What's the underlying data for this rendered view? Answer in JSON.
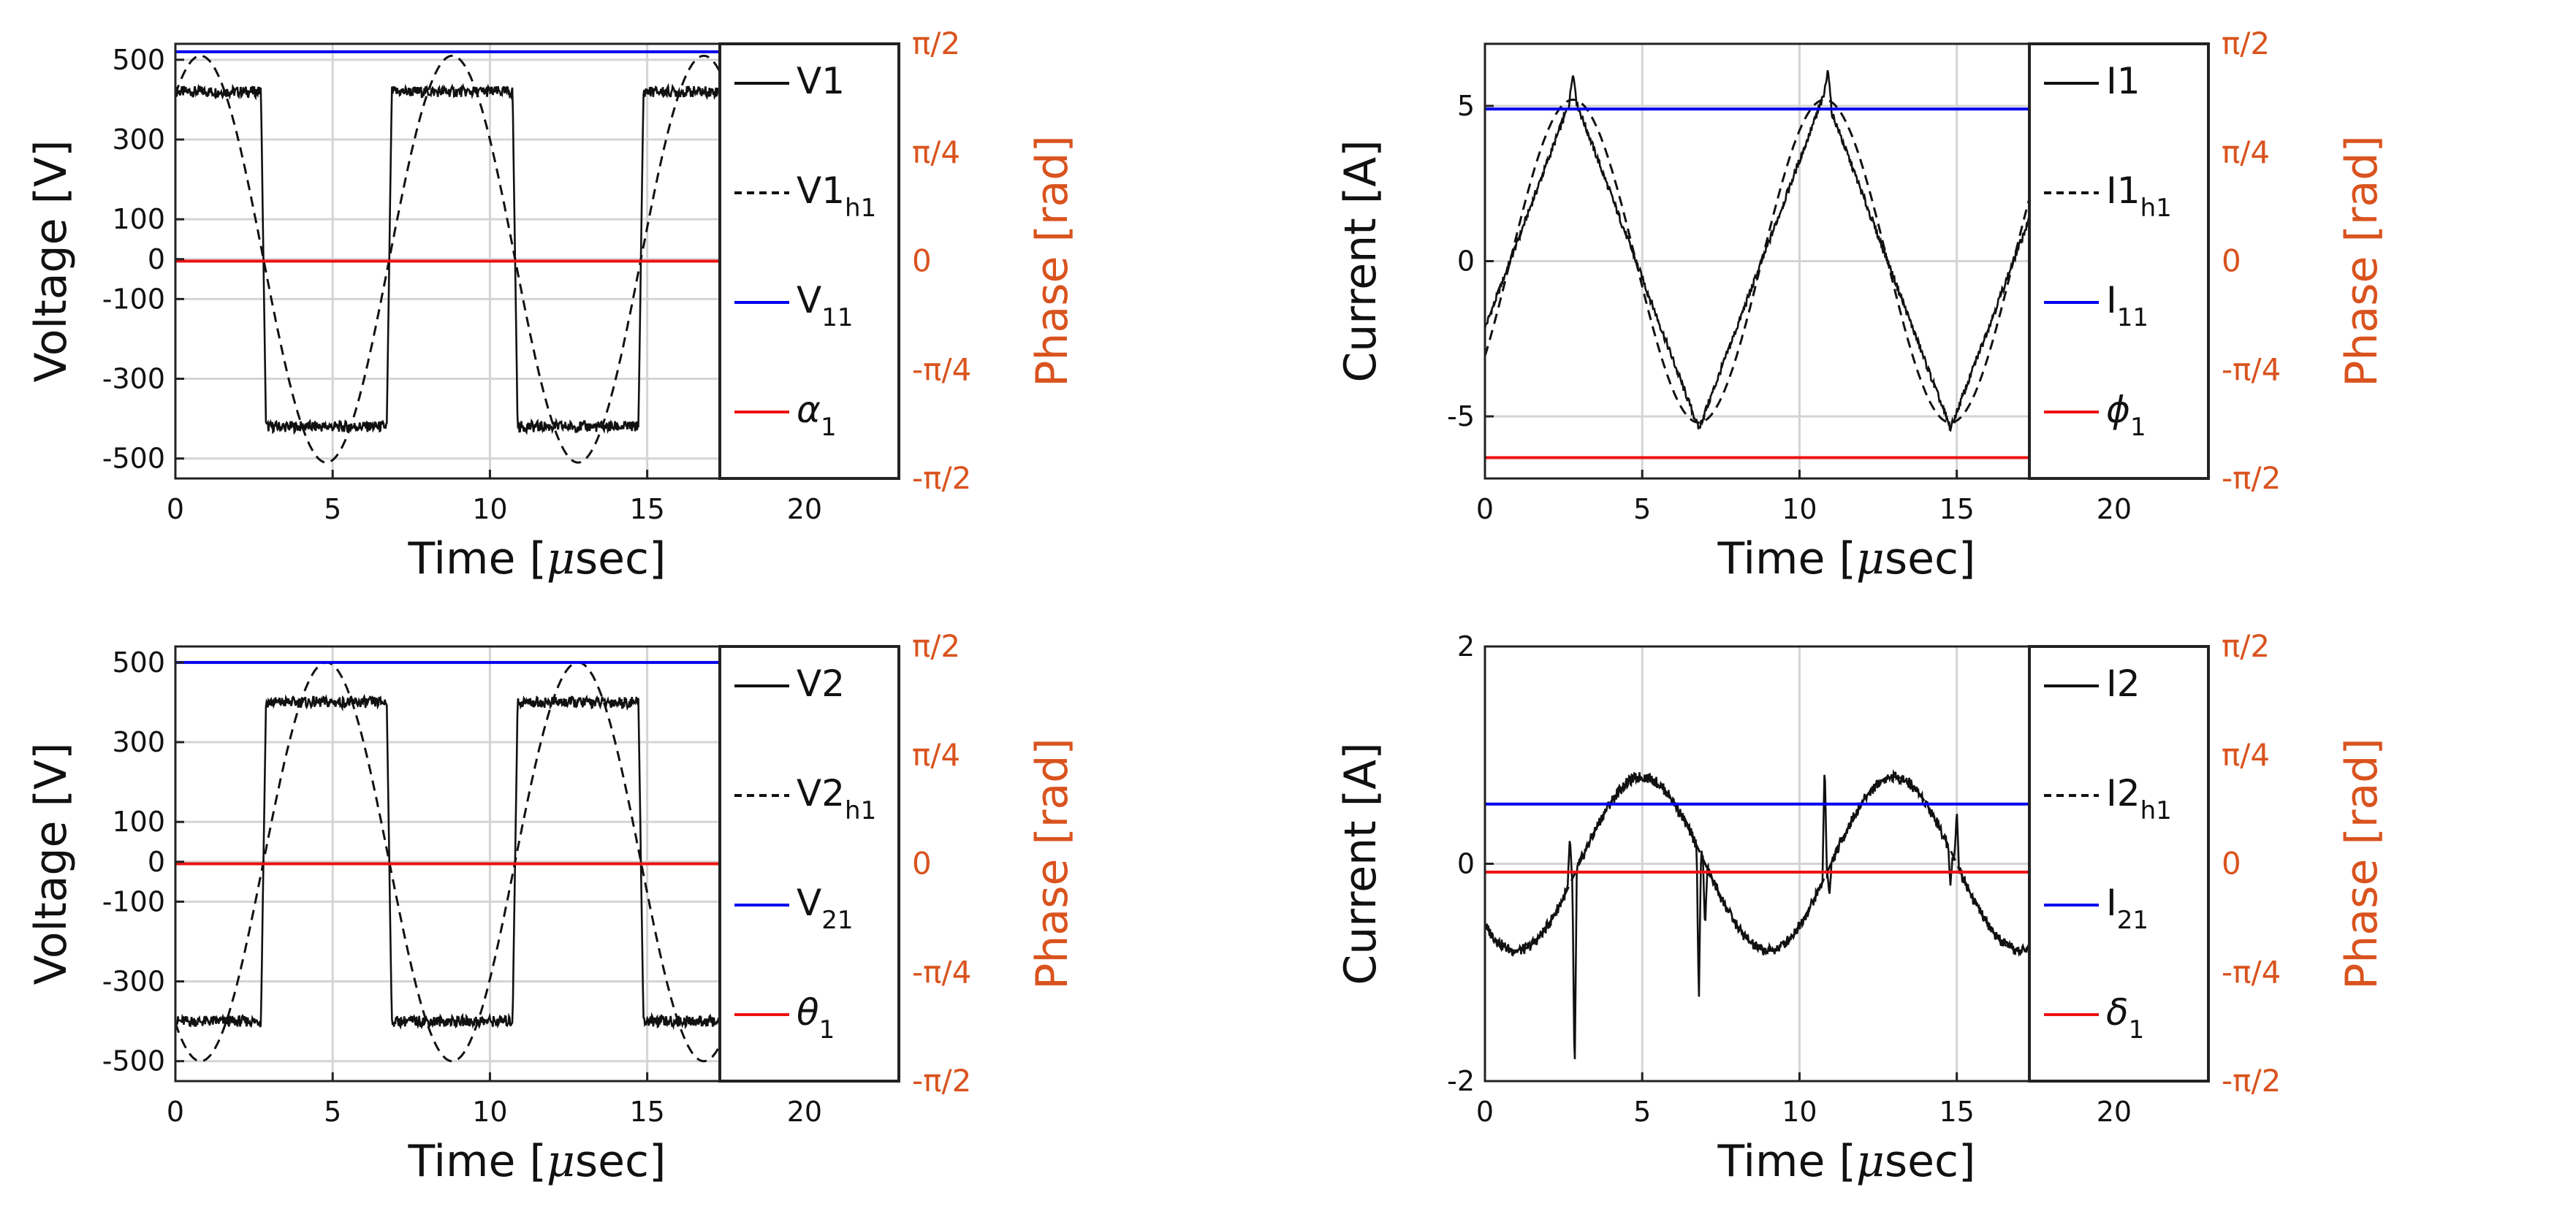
{
  "colors": {
    "blue": "#0000EE",
    "red": "#EE1111",
    "orange": "#D9531E",
    "grid": "#D4D4D4",
    "black": "#111111"
  },
  "chart_data": [
    {
      "id": "p1",
      "type": "line",
      "xlabel": "Time [",
      "xunit": "μ",
      "xunit_tail": "sec]",
      "ylabel": "Voltage [V]",
      "y2label": "Phase [rad]",
      "xlim": [
        0,
        23
      ],
      "ylim": [
        -550,
        540
      ],
      "y2lim": [
        -1.5708,
        1.5708
      ],
      "xticks": [
        0,
        5,
        10,
        15,
        20
      ],
      "xtick_labels": [
        "0",
        "5",
        "10",
        "15",
        "20"
      ],
      "yticks": [
        -500,
        -300,
        -100,
        0,
        100,
        300,
        500
      ],
      "ytick_labels": [
        "-500",
        "-300",
        "-100",
        "0",
        "100",
        "300",
        "500"
      ],
      "y2tick_labels": [
        "π/2",
        "π/4",
        "0",
        "-π/4",
        "-π/2"
      ],
      "period": 8,
      "data_end": 18.5,
      "square": {
        "amplitude": 420,
        "rise_at": 6.8,
        "fall_at": 2.8
      },
      "sine": {
        "amplitude": 510,
        "peak_at": 0.8,
        "sign": 1
      },
      "amplitude_line": 520,
      "phase_line_rad": 0,
      "legend": [
        {
          "name": "V",
          "main": "1",
          "sub": "",
          "style": "solid"
        },
        {
          "name": "V",
          "main": "1",
          "sub": "h1",
          "style": "dashed"
        },
        {
          "name": "V",
          "main": "",
          "sub": "11",
          "style": "blue"
        },
        {
          "name": "α",
          "main": "",
          "sub": "1",
          "style": "red"
        }
      ]
    },
    {
      "id": "p2",
      "type": "line",
      "xlabel": "Time [",
      "xunit": "μ",
      "xunit_tail": "sec]",
      "ylabel": "Current [A]",
      "y2label": "Phase [rad]",
      "xlim": [
        0,
        23
      ],
      "ylim": [
        -7,
        7
      ],
      "y2lim": [
        -1.5708,
        1.5708
      ],
      "xticks": [
        0,
        5,
        10,
        15,
        20
      ],
      "xtick_labels": [
        "0",
        "5",
        "10",
        "15",
        "20"
      ],
      "yticks": [
        -5,
        0,
        5
      ],
      "ytick_labels": [
        "-5",
        "0",
        "5"
      ],
      "y2tick_labels": [
        "π/2",
        "π/4",
        "0",
        "-π/4",
        "-π/2"
      ],
      "period": 8,
      "data_end": 18.5,
      "triangle": {
        "amplitude": 5.4,
        "peak_at": 2.8
      },
      "sine": {
        "amplitude": 5.2,
        "peak_at": 2.8,
        "sign": 1
      },
      "spikes": [
        {
          "x": 2.8,
          "y": 6.0
        },
        {
          "x": 10.9,
          "y": 6.2
        }
      ],
      "amplitude_line": 4.9,
      "phase_line_rad": -1.42,
      "legend": [
        {
          "name": "I",
          "main": "1",
          "sub": "",
          "style": "solid"
        },
        {
          "name": "I",
          "main": "1",
          "sub": "h1",
          "style": "dashed"
        },
        {
          "name": "I",
          "main": "",
          "sub": "11",
          "style": "blue"
        },
        {
          "name": "ϕ",
          "main": "",
          "sub": "1",
          "style": "red"
        }
      ]
    },
    {
      "id": "p3",
      "type": "line",
      "xlabel": "Time [",
      "xunit": "μ",
      "xunit_tail": "sec]",
      "ylabel": "Voltage [V]",
      "y2label": "Phase [rad]",
      "xlim": [
        0,
        23
      ],
      "ylim": [
        -550,
        540
      ],
      "y2lim": [
        -1.5708,
        1.5708
      ],
      "xticks": [
        0,
        5,
        10,
        15,
        20
      ],
      "xtick_labels": [
        "0",
        "5",
        "10",
        "15",
        "20"
      ],
      "yticks": [
        -500,
        -300,
        -100,
        0,
        100,
        300,
        500
      ],
      "ytick_labels": [
        "-500",
        "-300",
        "-100",
        "0",
        "100",
        "300",
        "500"
      ],
      "y2tick_labels": [
        "π/2",
        "π/4",
        "0",
        "-π/4",
        "-π/2"
      ],
      "period": 8,
      "data_end": 18.5,
      "square": {
        "amplitude": 400,
        "rise_at": 2.8,
        "fall_at": 6.8
      },
      "sine": {
        "amplitude": 500,
        "peak_at": 4.8,
        "sign": 1
      },
      "amplitude_line": 500,
      "phase_line_rad": 0,
      "legend": [
        {
          "name": "V",
          "main": "2",
          "sub": "",
          "style": "solid"
        },
        {
          "name": "V",
          "main": "2",
          "sub": "h1",
          "style": "dashed"
        },
        {
          "name": "V",
          "main": "",
          "sub": "21",
          "style": "blue"
        },
        {
          "name": "θ",
          "main": "",
          "sub": "1",
          "style": "red"
        }
      ]
    },
    {
      "id": "p4",
      "type": "line",
      "xlabel": "Time [",
      "xunit": "μ",
      "xunit_tail": "sec]",
      "ylabel": "Current [A]",
      "y2label": "Phase [rad]",
      "xlim": [
        0,
        23
      ],
      "ylim": [
        -2,
        2
      ],
      "y2lim": [
        -1.5708,
        1.5708
      ],
      "xticks": [
        0,
        5,
        10,
        15,
        20
      ],
      "xtick_labels": [
        "0",
        "5",
        "10",
        "15",
        "20"
      ],
      "yticks": [
        -2,
        0,
        2
      ],
      "ytick_labels": [
        "-2",
        "0",
        "2"
      ],
      "y2tick_labels": [
        "π/2",
        "π/4",
        "0",
        "-π/4",
        "-π/2"
      ],
      "period": 8,
      "data_end": 18.5,
      "sine": {
        "amplitude": 0.8,
        "peak_at": 5.0,
        "sign": 1
      },
      "spikes": [
        {
          "x": 2.7,
          "y": 0.25
        },
        {
          "x": 2.85,
          "y": -2.0
        },
        {
          "x": 6.8,
          "y": -1.3
        },
        {
          "x": 7.0,
          "y": -0.6
        },
        {
          "x": 10.8,
          "y": 0.95
        },
        {
          "x": 10.95,
          "y": -0.3
        },
        {
          "x": 14.8,
          "y": -0.2
        },
        {
          "x": 15.0,
          "y": 0.5
        }
      ],
      "amplitude_line": 0.55,
      "phase_line_rad": -0.06,
      "legend": [
        {
          "name": "I",
          "main": "2",
          "sub": "",
          "style": "solid"
        },
        {
          "name": "I",
          "main": "2",
          "sub": "h1",
          "style": "dashed"
        },
        {
          "name": "I",
          "main": "",
          "sub": "21",
          "style": "blue"
        },
        {
          "name": "δ",
          "main": "",
          "sub": "1",
          "style": "red"
        }
      ]
    }
  ]
}
